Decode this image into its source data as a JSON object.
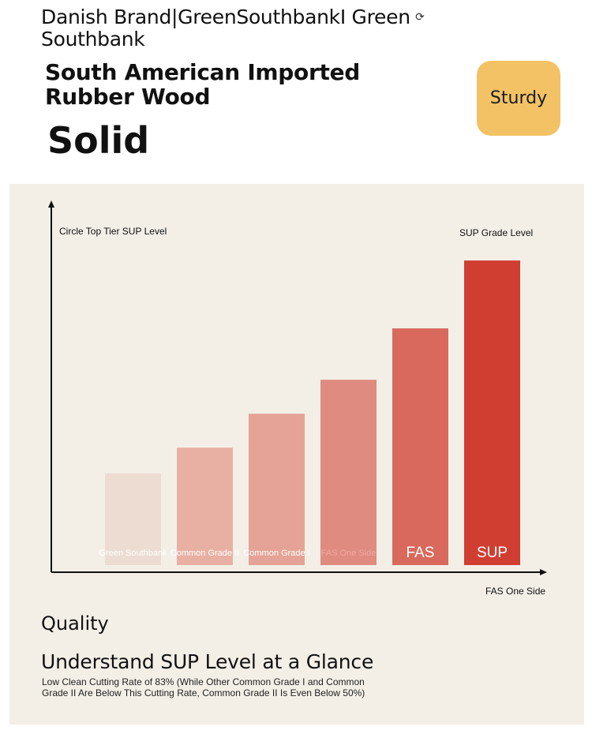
{
  "brand": {
    "title": "Danish Brand|GreenSouthbankI Green Southbank",
    "icon": "rotate-icon"
  },
  "product": {
    "headline": "South American Imported Rubber Wood",
    "material": "Solid",
    "badge_label": "Sturdy"
  },
  "chart_data": {
    "type": "bar",
    "top_left_label": "Circle Top Tier SUP Level",
    "top_right_label": "SUP Grade Level",
    "axis_end_label": "FAS One Side",
    "categories": [
      "Green Southbank",
      "Common Grade II",
      "Common Grade I",
      "FAS One Side",
      "FAS",
      "SUP"
    ],
    "values": [
      1.0,
      1.28,
      1.65,
      2.02,
      2.58,
      3.32
    ],
    "ylim": [
      0,
      3.6
    ],
    "colors": [
      "#ecdcd2",
      "#e8b0a3",
      "#e4a396",
      "#e08b80",
      "#d8695c",
      "#d03e32"
    ],
    "label_colors": [
      "#ffffff",
      "#ffffff",
      "#ffffff",
      "#f0a8a0",
      "#ffffff",
      "#ffffff"
    ],
    "grid": false
  },
  "footer": {
    "quality": "Quality",
    "heading": "Understand SUP Level at a Glance",
    "description": "Low Clean Cutting Rate of 83% (While Other Common Grade I and Common Grade II Are Below This Cutting Rate, Common Grade II Is Even Below 50%)"
  }
}
